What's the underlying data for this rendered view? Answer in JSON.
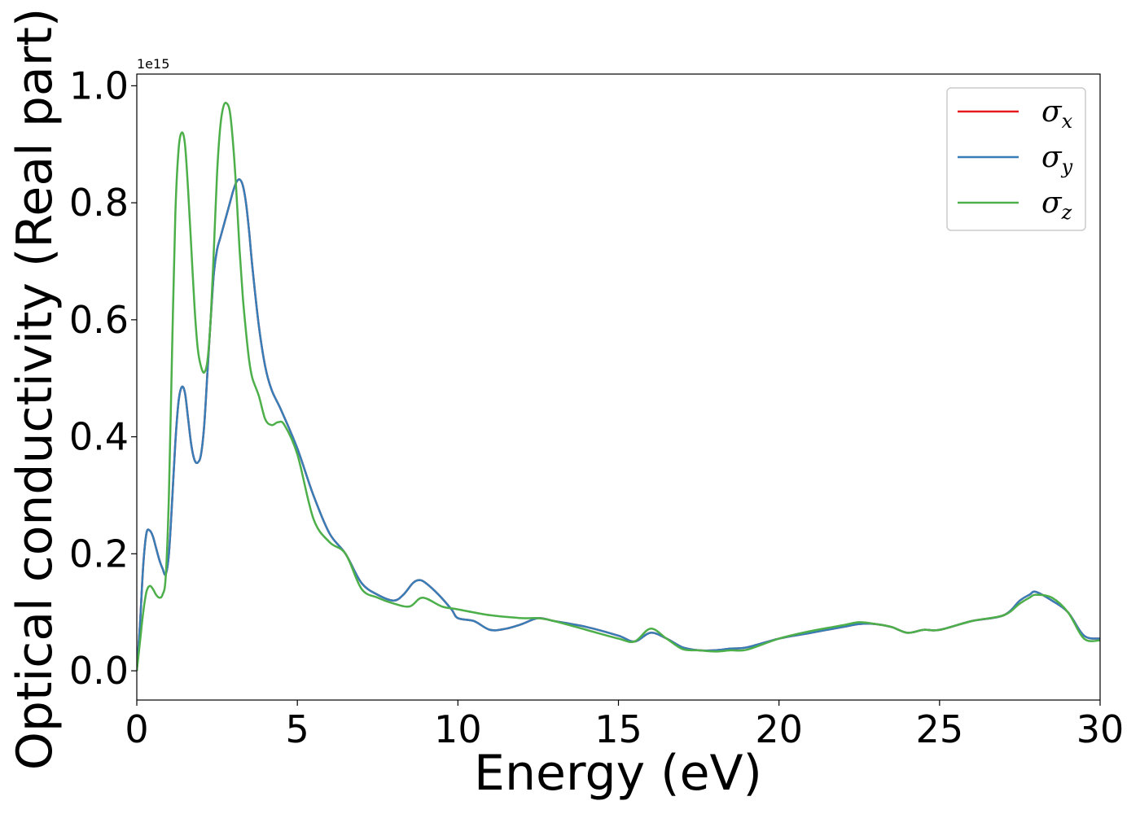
{
  "chart_data": {
    "type": "line",
    "xlabel": "Energy (eV)",
    "ylabel": "Optical conductivity (Real part)",
    "y_offset_label": "1e15",
    "xlim": [
      0,
      30
    ],
    "ylim": [
      -0.05,
      1.02
    ],
    "x_ticks": [
      0,
      5,
      10,
      15,
      20,
      25,
      30
    ],
    "x_tick_labels": [
      "0",
      "5",
      "10",
      "15",
      "20",
      "25",
      "30"
    ],
    "y_ticks": [
      0.0,
      0.2,
      0.4,
      0.6,
      0.8,
      1.0
    ],
    "y_tick_labels": [
      "0.0",
      "0.2",
      "0.4",
      "0.6",
      "0.8",
      "1.0"
    ],
    "grid": false,
    "legend_position": "top-right",
    "series": [
      {
        "name": "σx",
        "symbol": "σ",
        "subscript": "x",
        "color": "#e41a1c",
        "x": [
          0,
          0.1,
          0.2,
          0.3,
          0.4,
          0.5,
          0.6,
          0.7,
          0.8,
          0.9,
          1.0,
          1.1,
          1.2,
          1.3,
          1.4,
          1.5,
          1.6,
          1.7,
          1.8,
          1.9,
          2.0,
          2.1,
          2.2,
          2.3,
          2.4,
          2.5,
          2.6,
          2.7,
          2.8,
          2.9,
          3.0,
          3.1,
          3.2,
          3.3,
          3.4,
          3.5,
          3.6,
          3.8,
          4.0,
          4.2,
          4.5,
          5.0,
          5.5,
          6.0,
          6.5,
          7.0,
          7.5,
          8.0,
          8.3,
          8.6,
          8.8,
          9.0,
          9.4,
          9.8,
          10.0,
          10.5,
          11.0,
          11.5,
          12.0,
          12.5,
          13.0,
          14.0,
          15.0,
          15.5,
          16.0,
          16.5,
          17.0,
          17.5,
          18.0,
          18.5,
          19.0,
          20.0,
          21.0,
          22.0,
          22.5,
          23.0,
          23.5,
          24.0,
          24.5,
          25.0,
          26.0,
          27.0,
          27.5,
          27.8,
          28.0,
          28.5,
          29.0,
          29.5,
          30.0
        ],
        "y": [
          0.0,
          0.08,
          0.18,
          0.235,
          0.24,
          0.23,
          0.21,
          0.19,
          0.175,
          0.165,
          0.2,
          0.29,
          0.39,
          0.46,
          0.485,
          0.475,
          0.43,
          0.385,
          0.36,
          0.356,
          0.37,
          0.42,
          0.51,
          0.6,
          0.68,
          0.72,
          0.74,
          0.76,
          0.78,
          0.8,
          0.82,
          0.835,
          0.84,
          0.83,
          0.8,
          0.75,
          0.69,
          0.59,
          0.52,
          0.48,
          0.445,
          0.38,
          0.3,
          0.235,
          0.2,
          0.15,
          0.13,
          0.12,
          0.13,
          0.15,
          0.155,
          0.15,
          0.13,
          0.105,
          0.09,
          0.085,
          0.07,
          0.072,
          0.08,
          0.09,
          0.085,
          0.075,
          0.06,
          0.05,
          0.065,
          0.055,
          0.04,
          0.035,
          0.035,
          0.038,
          0.04,
          0.055,
          0.065,
          0.075,
          0.08,
          0.08,
          0.075,
          0.065,
          0.07,
          0.07,
          0.085,
          0.095,
          0.12,
          0.13,
          0.135,
          0.12,
          0.1,
          0.06,
          0.055
        ]
      },
      {
        "name": "σy",
        "symbol": "σ",
        "subscript": "y",
        "color": "#377eb8",
        "x": [
          0,
          0.1,
          0.2,
          0.3,
          0.4,
          0.5,
          0.6,
          0.7,
          0.8,
          0.9,
          1.0,
          1.1,
          1.2,
          1.3,
          1.4,
          1.5,
          1.6,
          1.7,
          1.8,
          1.9,
          2.0,
          2.1,
          2.2,
          2.3,
          2.4,
          2.5,
          2.6,
          2.7,
          2.8,
          2.9,
          3.0,
          3.1,
          3.2,
          3.3,
          3.4,
          3.5,
          3.6,
          3.8,
          4.0,
          4.2,
          4.5,
          5.0,
          5.5,
          6.0,
          6.5,
          7.0,
          7.5,
          8.0,
          8.3,
          8.6,
          8.8,
          9.0,
          9.4,
          9.8,
          10.0,
          10.5,
          11.0,
          11.5,
          12.0,
          12.5,
          13.0,
          14.0,
          15.0,
          15.5,
          16.0,
          16.5,
          17.0,
          17.5,
          18.0,
          18.5,
          19.0,
          20.0,
          21.0,
          22.0,
          22.5,
          23.0,
          23.5,
          24.0,
          24.5,
          25.0,
          26.0,
          27.0,
          27.5,
          27.8,
          28.0,
          28.5,
          29.0,
          29.5,
          30.0
        ],
        "y": [
          0.0,
          0.08,
          0.18,
          0.235,
          0.24,
          0.23,
          0.21,
          0.19,
          0.175,
          0.165,
          0.2,
          0.29,
          0.39,
          0.46,
          0.485,
          0.475,
          0.43,
          0.385,
          0.36,
          0.356,
          0.37,
          0.42,
          0.51,
          0.6,
          0.68,
          0.72,
          0.74,
          0.76,
          0.78,
          0.8,
          0.82,
          0.835,
          0.84,
          0.83,
          0.8,
          0.75,
          0.69,
          0.59,
          0.52,
          0.48,
          0.445,
          0.38,
          0.3,
          0.235,
          0.2,
          0.15,
          0.13,
          0.12,
          0.13,
          0.15,
          0.155,
          0.15,
          0.13,
          0.105,
          0.09,
          0.085,
          0.07,
          0.072,
          0.08,
          0.09,
          0.085,
          0.075,
          0.06,
          0.05,
          0.065,
          0.055,
          0.04,
          0.035,
          0.035,
          0.038,
          0.04,
          0.055,
          0.065,
          0.075,
          0.08,
          0.08,
          0.075,
          0.065,
          0.07,
          0.07,
          0.085,
          0.095,
          0.12,
          0.13,
          0.135,
          0.12,
          0.1,
          0.06,
          0.055
        ]
      },
      {
        "name": "σz",
        "symbol": "σ",
        "subscript": "z",
        "color": "#4daf4a",
        "x": [
          0,
          0.1,
          0.2,
          0.3,
          0.4,
          0.5,
          0.6,
          0.7,
          0.8,
          0.9,
          1.0,
          1.1,
          1.2,
          1.3,
          1.4,
          1.5,
          1.6,
          1.7,
          1.8,
          1.9,
          2.0,
          2.1,
          2.2,
          2.3,
          2.4,
          2.5,
          2.6,
          2.7,
          2.8,
          2.9,
          3.0,
          3.1,
          3.2,
          3.3,
          3.4,
          3.5,
          3.6,
          3.8,
          4.0,
          4.2,
          4.4,
          4.6,
          5.0,
          5.5,
          6.0,
          6.5,
          7.0,
          7.5,
          8.0,
          8.5,
          8.9,
          9.5,
          10.0,
          11.0,
          12.0,
          12.5,
          13.0,
          14.0,
          15.0,
          15.5,
          16.0,
          16.5,
          17.0,
          17.5,
          18.0,
          18.5,
          19.0,
          20.0,
          21.0,
          22.0,
          22.5,
          23.0,
          23.5,
          24.0,
          24.5,
          25.0,
          26.0,
          27.0,
          27.5,
          27.8,
          28.0,
          28.5,
          29.0,
          29.5,
          30.0
        ],
        "y": [
          0.0,
          0.05,
          0.1,
          0.135,
          0.145,
          0.14,
          0.13,
          0.125,
          0.13,
          0.16,
          0.3,
          0.55,
          0.78,
          0.89,
          0.92,
          0.9,
          0.82,
          0.72,
          0.62,
          0.55,
          0.52,
          0.51,
          0.53,
          0.6,
          0.72,
          0.85,
          0.93,
          0.965,
          0.97,
          0.955,
          0.9,
          0.82,
          0.72,
          0.64,
          0.58,
          0.53,
          0.5,
          0.47,
          0.43,
          0.42,
          0.425,
          0.42,
          0.37,
          0.26,
          0.22,
          0.2,
          0.14,
          0.125,
          0.115,
          0.11,
          0.125,
          0.11,
          0.105,
          0.095,
          0.09,
          0.09,
          0.085,
          0.07,
          0.055,
          0.05,
          0.072,
          0.055,
          0.037,
          0.035,
          0.033,
          0.035,
          0.036,
          0.055,
          0.068,
          0.078,
          0.083,
          0.08,
          0.075,
          0.065,
          0.07,
          0.07,
          0.085,
          0.095,
          0.115,
          0.125,
          0.13,
          0.125,
          0.1,
          0.055,
          0.052
        ]
      }
    ]
  }
}
